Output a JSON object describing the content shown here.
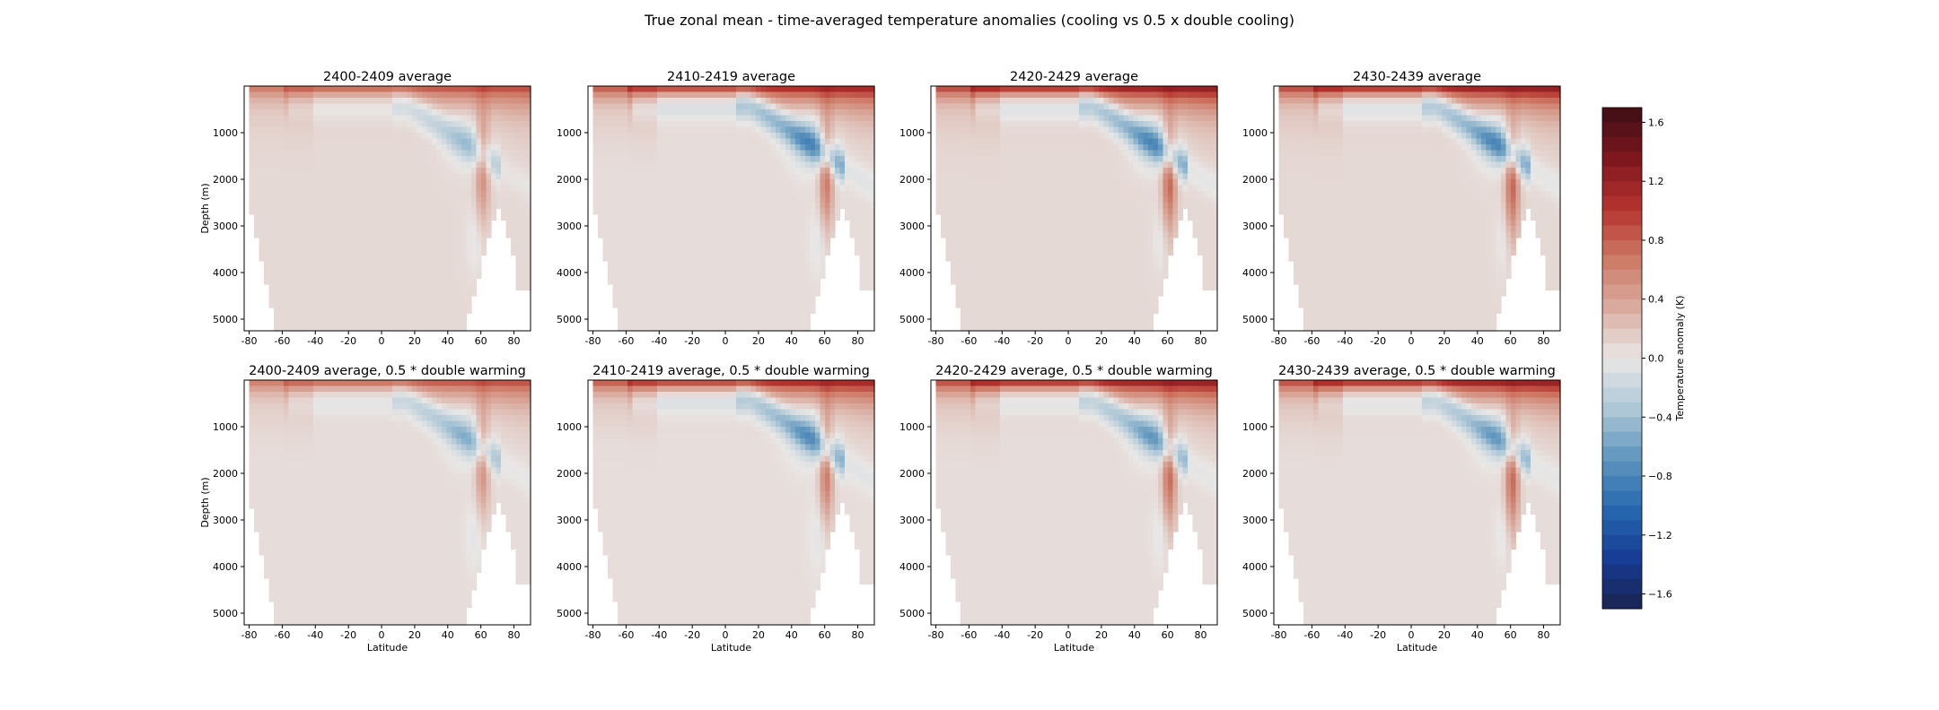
{
  "chart_data": {
    "type": "heatmap",
    "title": "True zonal mean - time-averaged temperature anomalies (cooling vs 0.5 x double cooling)",
    "xlabel": "Latitude",
    "ylabel": "Depth (m)",
    "xlim": [
      -83,
      90
    ],
    "ylim": [
      5250,
      0
    ],
    "y_inverted": true,
    "x_ticks": [
      "-80",
      "-60",
      "-40",
      "-20",
      "0",
      "20",
      "40",
      "60",
      "80"
    ],
    "y_ticks": [
      "1000",
      "2000",
      "3000",
      "4000",
      "5000"
    ],
    "colorbar": {
      "label": "Temperature anomaly (K)",
      "range": [
        -1.7,
        1.7
      ],
      "ticks": [
        "1.6",
        "1.2",
        "0.8",
        "0.4",
        "0.0",
        "−0.4",
        "−0.8",
        "−1.2",
        "−1.6"
      ],
      "colormap": "diverging blue-white-red",
      "neg_color": "#1a2350",
      "zero_color": "#e9e7e6",
      "pos_color": "#3c0f15"
    },
    "panels": [
      {
        "title": "2400-2409 average",
        "row": 0,
        "col": 0,
        "surface_warm": 0.9,
        "deep_warm": 0.08,
        "cool": 0.35
      },
      {
        "title": "2410-2419 average",
        "row": 0,
        "col": 1,
        "surface_warm": 1.2,
        "deep_warm": 0.06,
        "cool": 0.6
      },
      {
        "title": "2420-2429 average",
        "row": 0,
        "col": 2,
        "surface_warm": 1.3,
        "deep_warm": 0.08,
        "cool": 0.6
      },
      {
        "title": "2430-2439 average",
        "row": 0,
        "col": 3,
        "surface_warm": 1.3,
        "deep_warm": 0.08,
        "cool": 0.6
      },
      {
        "title": "2400-2409 average, 0.5 * double warming",
        "row": 1,
        "col": 0,
        "surface_warm": 0.9,
        "deep_warm": 0.06,
        "cool": 0.4
      },
      {
        "title": "2410-2419 average, 0.5 * double warming",
        "row": 1,
        "col": 1,
        "surface_warm": 1.2,
        "deep_warm": 0.05,
        "cool": 0.55
      },
      {
        "title": "2420-2429 average, 0.5 * double warming",
        "row": 1,
        "col": 2,
        "surface_warm": 1.3,
        "deep_warm": 0.06,
        "cool": 0.5
      },
      {
        "title": "2430-2439 average, 0.5 * double warming",
        "row": 1,
        "col": 3,
        "surface_warm": 1.3,
        "deep_warm": 0.06,
        "cool": 0.5
      }
    ]
  }
}
